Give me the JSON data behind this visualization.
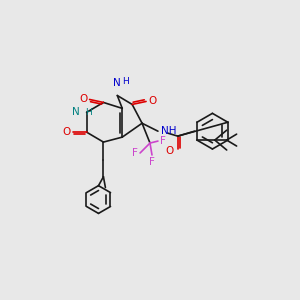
{
  "bg_color": "#e8e8e8",
  "figsize": [
    3.0,
    3.0
  ],
  "dpi": 100,
  "xlim": [
    0,
    300
  ],
  "ylim": [
    0,
    300
  ]
}
